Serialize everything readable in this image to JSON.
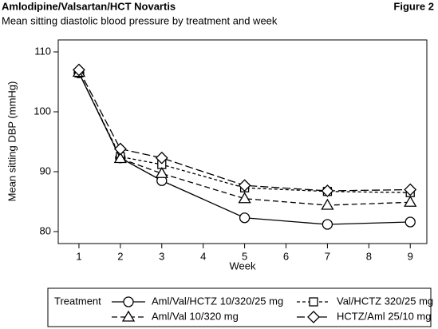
{
  "chart_data": {
    "type": "line",
    "header": "Amlodipine/Valsartan/HCT Novartis",
    "figure_label": "Figure 2",
    "title": "Mean sitting diastolic blood pressure by treatment and week",
    "x_label": "Week",
    "y_label": "Mean sitting DBP (mmHg)",
    "legend_title": "Treatment",
    "x": [
      1,
      2,
      3,
      5,
      7,
      9
    ],
    "xlim": [
      0.5,
      9.4
    ],
    "xticks": [
      1,
      2,
      3,
      4,
      5,
      6,
      7,
      8,
      9
    ],
    "ylim": [
      78,
      112
    ],
    "yticks": [
      80,
      90,
      100,
      110
    ],
    "series": [
      {
        "name": "Aml/Val/HCTZ 10/320/25 mg",
        "color": "#000000",
        "marker": "circle",
        "dash": "solid",
        "values": [
          106.5,
          92.3,
          88.5,
          82.3,
          81.2,
          81.6
        ]
      },
      {
        "name": "Val/HCTZ 320/25 mg",
        "color": "#000000",
        "marker": "square",
        "dash": "short",
        "values": [
          106.5,
          92.5,
          91.2,
          87.3,
          86.7,
          86.5
        ]
      },
      {
        "name": "Aml/Val 10/320 mg",
        "color": "#000000",
        "marker": "triangle",
        "dash": "medium",
        "values": [
          106.6,
          92.2,
          89.7,
          85.5,
          84.4,
          84.9
        ]
      },
      {
        "name": "HCTZ/Aml 25/10 mg",
        "color": "#000000",
        "marker": "diamond",
        "dash": "long",
        "values": [
          107,
          93.8,
          92.3,
          87.7,
          86.8,
          87
        ]
      }
    ]
  }
}
